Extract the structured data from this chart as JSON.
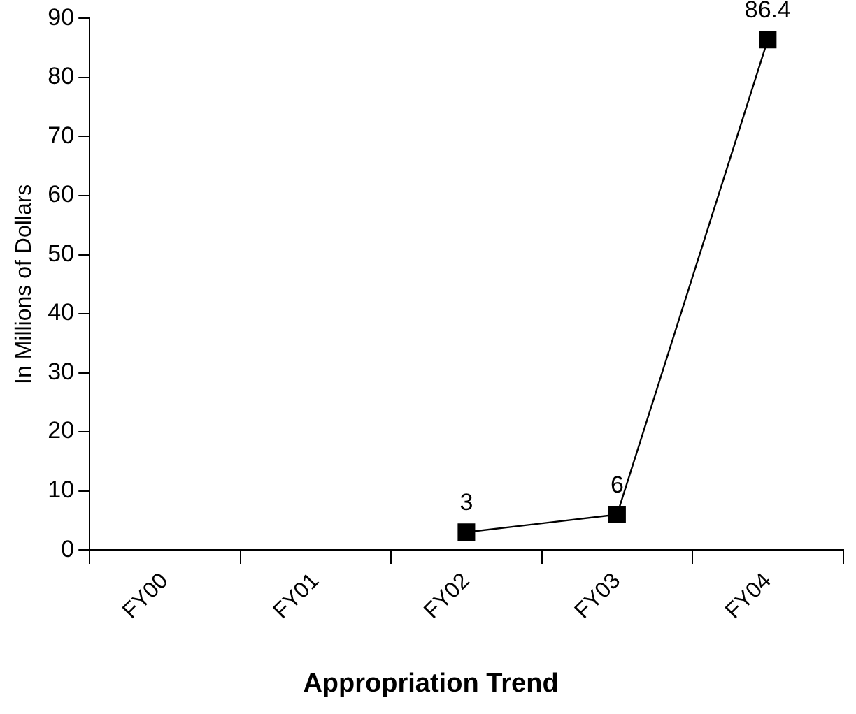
{
  "chart_data": {
    "type": "line",
    "title": "Appropriation Trend",
    "ylabel": "In Millions of Dollars",
    "categories": [
      "FY00",
      "FY01",
      "FY02",
      "FY03",
      "FY04"
    ],
    "series": [
      {
        "color": "#000000",
        "values": [
          null,
          null,
          3,
          6,
          86.4
        ]
      }
    ],
    "ylim": [
      0,
      90
    ],
    "yticks": [
      0,
      10,
      20,
      30,
      40,
      50,
      60,
      70,
      80,
      90
    ],
    "grid": false,
    "legend": false,
    "marker": "square",
    "line_style": "solid",
    "data_labels": true
  }
}
